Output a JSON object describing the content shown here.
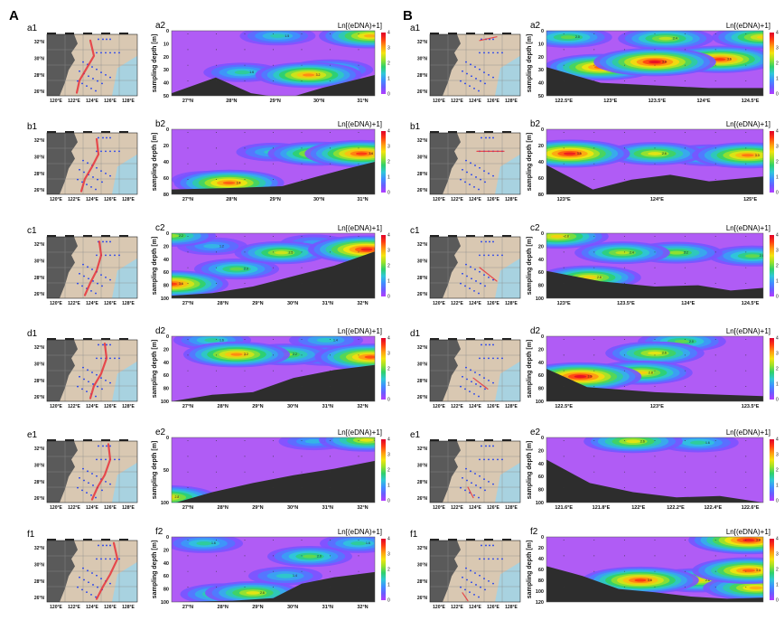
{
  "colors": {
    "scale": [
      "#b23cff",
      "#6a5cff",
      "#3f8fff",
      "#2fc8d8",
      "#2fd06a",
      "#9be22a",
      "#f5e40e",
      "#ff9a12",
      "#ff3b12",
      "#e0002a"
    ],
    "background": "#b05cf5",
    "seafloor": "#2d2d2d",
    "land": "#5a5a5a",
    "sea": "#d9c8b2",
    "station": "#1d3cf0",
    "transect": "#e8323a"
  },
  "colorbar": {
    "title": "Ln[(eDNA)+1]",
    "ticks": [
      "0",
      "1",
      "2",
      "3",
      "4"
    ]
  },
  "map_ticks": {
    "lat": [
      "32°N",
      "30°N",
      "28°N",
      "26°N"
    ],
    "lon": [
      "120°E",
      "122°E",
      "124°E",
      "126°E",
      "128°E"
    ]
  },
  "y_axis_label": "sampling depth [m]",
  "groups": [
    {
      "letter": "A",
      "rows": [
        {
          "map_label": "a1",
          "chart_label": "a2",
          "x_ticks": [
            "27°N",
            "28°N",
            "29°N",
            "30°N",
            "31°N"
          ],
          "y_ticks": [
            "0",
            "10",
            "20",
            "30",
            "40",
            "50"
          ],
          "ymax": 50
        },
        {
          "map_label": "b1",
          "chart_label": "b2",
          "x_ticks": [
            "27°N",
            "28°N",
            "29°N",
            "30°N",
            "31°N"
          ],
          "y_ticks": [
            "0",
            "20",
            "40",
            "60",
            "80"
          ],
          "ymax": 80
        },
        {
          "map_label": "c1",
          "chart_label": "c2",
          "x_ticks": [
            "27°N",
            "28°N",
            "29°N",
            "30°N",
            "31°N",
            "32°N"
          ],
          "y_ticks": [
            "0",
            "20",
            "40",
            "60",
            "80",
            "100"
          ],
          "ymax": 100
        },
        {
          "map_label": "d1",
          "chart_label": "d2",
          "x_ticks": [
            "27°N",
            "28°N",
            "29°N",
            "30°N",
            "31°N",
            "32°N"
          ],
          "y_ticks": [
            "0",
            "20",
            "40",
            "60",
            "80",
            "100"
          ],
          "ymax": 100
        },
        {
          "map_label": "e1",
          "chart_label": "e2",
          "x_ticks": [
            "27°N",
            "28°N",
            "29°N",
            "30°N",
            "31°N",
            "32°N"
          ],
          "y_ticks": [
            "0",
            "50",
            "100"
          ],
          "ymax": 100
        },
        {
          "map_label": "f1",
          "chart_label": "f2",
          "x_ticks": [
            "27°N",
            "28°N",
            "29°N",
            "30°N",
            "31°N",
            "32°N"
          ],
          "y_ticks": [
            "0",
            "20",
            "40",
            "60",
            "80",
            "100"
          ],
          "ymax": 100
        }
      ]
    },
    {
      "letter": "B",
      "rows": [
        {
          "map_label": "a1",
          "chart_label": "a2",
          "x_ticks": [
            "122.5°E",
            "123°E",
            "123.5°E",
            "124°E",
            "124.5°E"
          ],
          "y_ticks": [
            "0",
            "10",
            "20",
            "30",
            "40",
            "50"
          ],
          "ymax": 50
        },
        {
          "map_label": "b1",
          "chart_label": "b2",
          "x_ticks": [
            "123°E",
            "124°E",
            "125°E"
          ],
          "y_ticks": [
            "0",
            "20",
            "40",
            "60",
            "80"
          ],
          "ymax": 80
        },
        {
          "map_label": "c1",
          "chart_label": "c2",
          "x_ticks": [
            "123°E",
            "123.5°E",
            "124°E",
            "124.5°E"
          ],
          "y_ticks": [
            "0",
            "20",
            "40",
            "60",
            "80",
            "100"
          ],
          "ymax": 100
        },
        {
          "map_label": "d1",
          "chart_label": "d2",
          "x_ticks": [
            "122.5°E",
            "123°E",
            "123.5°E"
          ],
          "y_ticks": [
            "0",
            "20",
            "40",
            "60",
            "80",
            "100"
          ],
          "ymax": 100
        },
        {
          "map_label": "e1",
          "chart_label": "e2",
          "x_ticks": [
            "121.6°E",
            "121.8°E",
            "122°E",
            "122.2°E",
            "122.4°E",
            "122.6°E"
          ],
          "y_ticks": [
            "0",
            "20",
            "40",
            "60",
            "80",
            "100"
          ],
          "ymax": 100
        },
        {
          "map_label": "f1",
          "chart_label": "f2",
          "x_ticks": [],
          "y_ticks": [
            "0",
            "20",
            "40",
            "60",
            "80",
            "100",
            "120"
          ],
          "ymax": 120
        }
      ]
    }
  ],
  "chart_data": [
    {
      "panel": "A-a2",
      "type": "heatmap",
      "xlabel": "",
      "ylabel": "sampling depth [m]",
      "xlim": [
        27,
        31.6
      ],
      "ylim": [
        50,
        0
      ],
      "blobs": [
        {
          "x": 30.1,
          "y": 34,
          "v": 3.2
        },
        {
          "x": 31.5,
          "y": 4,
          "v": 3.0
        },
        {
          "x": 29.4,
          "y": 4,
          "v": 1.5
        },
        {
          "x": 28.6,
          "y": 32,
          "v": 1.6
        },
        {
          "x": 30.6,
          "y": 30,
          "v": 2.0
        }
      ],
      "seafloor": [
        [
          27,
          48
        ],
        [
          28,
          36
        ],
        [
          28.8,
          48
        ],
        [
          29.6,
          52
        ],
        [
          30.4,
          44
        ],
        [
          31.6,
          34
        ]
      ]
    },
    {
      "panel": "A-b2",
      "type": "heatmap",
      "xlabel": "",
      "ylabel": "sampling depth [m]",
      "xlim": [
        27,
        31.6
      ],
      "ylim": [
        80,
        0
      ],
      "blobs": [
        {
          "x": 31.3,
          "y": 30,
          "v": 3.6
        },
        {
          "x": 30.3,
          "y": 30,
          "v": 2.8
        },
        {
          "x": 28.3,
          "y": 66,
          "v": 3.4
        },
        {
          "x": 29.3,
          "y": 28,
          "v": 1.4
        },
        {
          "x": 27.8,
          "y": 62,
          "v": 1.2
        }
      ],
      "seafloor": [
        [
          27,
          74
        ],
        [
          28.5,
          72
        ],
        [
          29.5,
          70
        ],
        [
          30.3,
          58
        ],
        [
          31,
          48
        ],
        [
          31.6,
          40
        ]
      ]
    },
    {
      "panel": "A-c2",
      "type": "heatmap",
      "xlabel": "",
      "ylabel": "sampling depth [m]",
      "xlim": [
        27,
        32
      ],
      "ylim": [
        100,
        0
      ],
      "blobs": [
        {
          "x": 27.0,
          "y": 4,
          "v": 2.2
        },
        {
          "x": 27.0,
          "y": 78,
          "v": 3.6
        },
        {
          "x": 28.6,
          "y": 55,
          "v": 2.0
        },
        {
          "x": 29.7,
          "y": 30,
          "v": 2.5
        },
        {
          "x": 31.8,
          "y": 25,
          "v": 3.8
        },
        {
          "x": 30.5,
          "y": 15,
          "v": 1.0
        },
        {
          "x": 28.0,
          "y": 20,
          "v": 1.2
        }
      ],
      "seafloor": [
        [
          27,
          96
        ],
        [
          28,
          92
        ],
        [
          29,
          82
        ],
        [
          30,
          66
        ],
        [
          31,
          50
        ],
        [
          32,
          28
        ]
      ]
    },
    {
      "panel": "A-d2",
      "type": "heatmap",
      "xlabel": "",
      "ylabel": "sampling depth [m]",
      "xlim": [
        27,
        32
      ],
      "ylim": [
        100,
        0
      ],
      "blobs": [
        {
          "x": 28.6,
          "y": 28,
          "v": 3.2
        },
        {
          "x": 31.9,
          "y": 32,
          "v": 3.5
        },
        {
          "x": 29.8,
          "y": 28,
          "v": 2.2
        },
        {
          "x": 28.0,
          "y": 6,
          "v": 1.6
        },
        {
          "x": 30.8,
          "y": 6,
          "v": 1.4
        },
        {
          "x": 30.8,
          "y": 30,
          "v": 1.8
        }
      ],
      "seafloor": [
        [
          27,
          100
        ],
        [
          28,
          90
        ],
        [
          29,
          86
        ],
        [
          30,
          64
        ],
        [
          31,
          52
        ],
        [
          32,
          44
        ]
      ]
    },
    {
      "panel": "A-e2",
      "type": "heatmap",
      "xlabel": "",
      "ylabel": "sampling depth [m]",
      "xlim": [
        27,
        32
      ],
      "ylim": [
        100,
        0
      ],
      "blobs": [
        {
          "x": 26.9,
          "y": 92,
          "v": 2.8
        },
        {
          "x": 31.8,
          "y": 4,
          "v": 2.6
        },
        {
          "x": 30.5,
          "y": 6,
          "v": 1.2
        }
      ],
      "seafloor": [
        [
          27,
          102
        ],
        [
          28,
          84
        ],
        [
          29,
          70
        ],
        [
          30,
          58
        ],
        [
          31,
          48
        ],
        [
          32,
          36
        ]
      ]
    },
    {
      "panel": "A-f2",
      "type": "heatmap",
      "xlabel": "",
      "ylabel": "sampling depth [m]",
      "xlim": [
        27,
        32
      ],
      "ylim": [
        100,
        0
      ],
      "blobs": [
        {
          "x": 29.0,
          "y": 86,
          "v": 2.6
        },
        {
          "x": 28.3,
          "y": 88,
          "v": 2.2
        },
        {
          "x": 27.8,
          "y": 10,
          "v": 1.6
        },
        {
          "x": 30.4,
          "y": 30,
          "v": 2.0
        },
        {
          "x": 31.6,
          "y": 10,
          "v": 1.6
        },
        {
          "x": 29.8,
          "y": 60,
          "v": 1.4
        }
      ],
      "seafloor": [
        [
          27,
          100
        ],
        [
          28.5,
          98
        ],
        [
          29.5,
          94
        ],
        [
          30.2,
          72
        ],
        [
          31,
          62
        ],
        [
          32,
          54
        ]
      ]
    },
    {
      "panel": "B-a2",
      "type": "heatmap",
      "xlabel": "",
      "ylabel": "sampling depth [m]",
      "xlim": [
        122.5,
        124.5
      ],
      "ylim": [
        50,
        0
      ],
      "blobs": [
        {
          "x": 123.5,
          "y": 24,
          "v": 3.9
        },
        {
          "x": 123.0,
          "y": 28,
          "v": 3.4
        },
        {
          "x": 124.1,
          "y": 22,
          "v": 3.6
        },
        {
          "x": 122.7,
          "y": 5,
          "v": 2.0
        },
        {
          "x": 124.5,
          "y": 5,
          "v": 2.8
        },
        {
          "x": 123.6,
          "y": 6,
          "v": 2.4
        }
      ],
      "seafloor": [
        [
          122.5,
          28
        ],
        [
          123,
          40
        ],
        [
          123.5,
          42
        ],
        [
          124,
          44
        ],
        [
          124.5,
          44
        ]
      ]
    },
    {
      "panel": "B-b2",
      "type": "heatmap",
      "xlabel": "",
      "ylabel": "sampling depth [m]",
      "xlim": [
        122.7,
        125.5
      ],
      "ylim": [
        80,
        0
      ],
      "blobs": [
        {
          "x": 123.0,
          "y": 30,
          "v": 3.8
        },
        {
          "x": 125.3,
          "y": 32,
          "v": 3.3
        },
        {
          "x": 124.1,
          "y": 30,
          "v": 2.6
        },
        {
          "x": 124.8,
          "y": 32,
          "v": 2.2
        }
      ],
      "seafloor": [
        [
          122.7,
          44
        ],
        [
          123.3,
          74
        ],
        [
          123.8,
          62
        ],
        [
          124.3,
          56
        ],
        [
          124.8,
          64
        ],
        [
          125.5,
          58
        ]
      ]
    },
    {
      "panel": "B-c2",
      "type": "heatmap",
      "xlabel": "",
      "ylabel": "sampling depth [m]",
      "xlim": [
        122.8,
        124.8
      ],
      "ylim": [
        100,
        0
      ],
      "blobs": [
        {
          "x": 122.9,
          "y": 5,
          "v": 2.8
        },
        {
          "x": 123.5,
          "y": 30,
          "v": 2.4
        },
        {
          "x": 123.2,
          "y": 68,
          "v": 2.8
        },
        {
          "x": 124.7,
          "y": 35,
          "v": 2.0
        },
        {
          "x": 124.0,
          "y": 30,
          "v": 2.2
        }
      ],
      "seafloor": [
        [
          122.8,
          58
        ],
        [
          123.3,
          74
        ],
        [
          123.8,
          82
        ],
        [
          124.2,
          80
        ],
        [
          124.5,
          88
        ],
        [
          124.8,
          84
        ]
      ]
    },
    {
      "panel": "B-d2",
      "type": "heatmap",
      "xlabel": "",
      "ylabel": "sampling depth [m]",
      "xlim": [
        122.2,
        123.8
      ],
      "ylim": [
        100,
        0
      ],
      "blobs": [
        {
          "x": 122.45,
          "y": 62,
          "v": 3.9
        },
        {
          "x": 122.9,
          "y": 56,
          "v": 2.8
        },
        {
          "x": 123.0,
          "y": 26,
          "v": 2.6
        },
        {
          "x": 123.2,
          "y": 8,
          "v": 2.0
        }
      ],
      "seafloor": [
        [
          122.2,
          50
        ],
        [
          122.5,
          78
        ],
        [
          123,
          86
        ],
        [
          123.5,
          90
        ],
        [
          123.8,
          92
        ]
      ]
    },
    {
      "panel": "B-e2",
      "type": "heatmap",
      "xlabel": "",
      "ylabel": "sampling depth [m]",
      "xlim": [
        121.6,
        122.6
      ],
      "ylim": [
        100,
        0
      ],
      "blobs": [
        {
          "x": 122.0,
          "y": 6,
          "v": 2.6
        },
        {
          "x": 122.3,
          "y": 8,
          "v": 1.6
        }
      ],
      "seafloor": [
        [
          121.6,
          34
        ],
        [
          121.8,
          70
        ],
        [
          122.0,
          84
        ],
        [
          122.2,
          92
        ],
        [
          122.4,
          90
        ],
        [
          122.6,
          100
        ]
      ]
    },
    {
      "panel": "B-f2",
      "type": "heatmap",
      "xlabel": "",
      "ylabel": "sampling depth [m]",
      "xlim": [
        121.5,
        124.5
      ],
      "ylim": [
        120,
        0
      ],
      "blobs": [
        {
          "x": 122.8,
          "y": 80,
          "v": 3.6
        },
        {
          "x": 124.3,
          "y": 6,
          "v": 3.8
        },
        {
          "x": 124.3,
          "y": 62,
          "v": 3.4
        },
        {
          "x": 123.6,
          "y": 80,
          "v": 2.8
        },
        {
          "x": 124.4,
          "y": 94,
          "v": 3.0
        }
      ],
      "seafloor": [
        [
          121.5,
          54
        ],
        [
          122,
          72
        ],
        [
          122.5,
          96
        ],
        [
          123,
          102
        ],
        [
          123.5,
          110
        ],
        [
          124,
          114
        ],
        [
          124.5,
          112
        ]
      ]
    }
  ]
}
